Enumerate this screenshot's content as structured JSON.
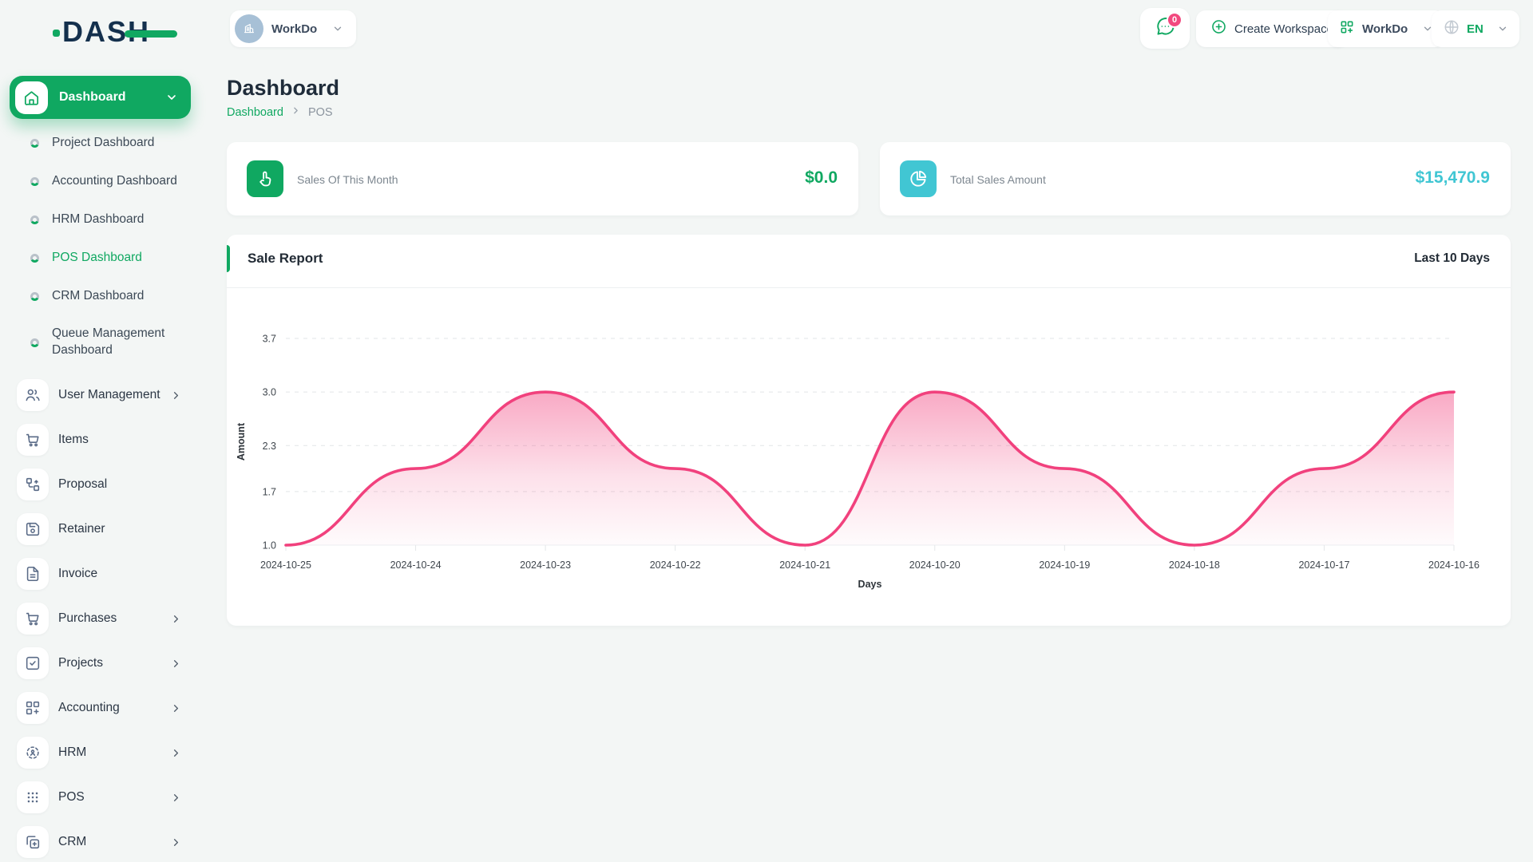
{
  "brand": {
    "logo_text": "DASH"
  },
  "topbar": {
    "workspace_chip": {
      "label": "WorkDo"
    },
    "messages": {
      "badge": "0"
    },
    "create_workspace": {
      "label": "Create Workspace"
    },
    "workspace_menu": {
      "label": "WorkDo"
    },
    "language": {
      "code": "EN"
    }
  },
  "sidebar": {
    "group": {
      "label": "Dashboard"
    },
    "children": [
      {
        "label": "Project Dashboard",
        "active": false
      },
      {
        "label": "Accounting Dashboard",
        "active": false
      },
      {
        "label": "HRM Dashboard",
        "active": false
      },
      {
        "label": "POS Dashboard",
        "active": true
      },
      {
        "label": "CRM Dashboard",
        "active": false
      },
      {
        "label": "Queue Management Dashboard",
        "active": false
      }
    ],
    "items": [
      {
        "label": "User Management",
        "icon": "users-icon",
        "expandable": true
      },
      {
        "label": "Items",
        "icon": "cart-icon",
        "expandable": false
      },
      {
        "label": "Proposal",
        "icon": "workflow-icon",
        "expandable": false
      },
      {
        "label": "Retainer",
        "icon": "save-icon",
        "expandable": false
      },
      {
        "label": "Invoice",
        "icon": "file-text-icon",
        "expandable": false
      },
      {
        "label": "Purchases",
        "icon": "cart-icon",
        "expandable": true
      },
      {
        "label": "Projects",
        "icon": "check-square-icon",
        "expandable": true
      },
      {
        "label": "Accounting",
        "icon": "grid-plus-icon",
        "expandable": true
      },
      {
        "label": "HRM",
        "icon": "target-icon",
        "expandable": true
      },
      {
        "label": "POS",
        "icon": "dots-grid-icon",
        "expandable": true
      },
      {
        "label": "CRM",
        "icon": "copy-icon",
        "expandable": true
      }
    ]
  },
  "page": {
    "title": "Dashboard",
    "breadcrumb": {
      "home": "Dashboard",
      "current": "POS"
    }
  },
  "stats": [
    {
      "label": "Sales Of This Month",
      "value": "$0.0",
      "accent": "#10a861",
      "icon": "tap-icon"
    },
    {
      "label": "Total Sales Amount",
      "value": "$15,470.9",
      "accent": "#41c6d3",
      "icon": "pie-chart-icon"
    }
  ],
  "sale_report": {
    "title": "Sale Report",
    "period": "Last 10 Days"
  },
  "chart_data": {
    "type": "area",
    "title": "Sale Report",
    "x": [
      "2024-10-25",
      "2024-10-24",
      "2024-10-23",
      "2024-10-22",
      "2024-10-21",
      "2024-10-20",
      "2024-10-19",
      "2024-10-18",
      "2024-10-17",
      "2024-10-16"
    ],
    "series": [
      {
        "name": "Amount",
        "values": [
          1,
          2,
          3,
          2,
          1,
          3,
          2,
          1,
          2,
          3
        ]
      }
    ],
    "xlabel": "Days",
    "ylabel": "Amount",
    "ylim": [
      1.0,
      3.7
    ],
    "yticks": [
      1.0,
      1.7,
      2.3,
      3.0,
      3.7
    ],
    "ytick_labels": [
      "1.0",
      "1.7",
      "2.3",
      "3.0",
      "3.7"
    ],
    "grid": "horizontal-dashed",
    "legend": "none",
    "smooth": true,
    "line_color": "#f1417d",
    "fill": "pink-gradient-fade",
    "label_color": "#3f464d"
  }
}
